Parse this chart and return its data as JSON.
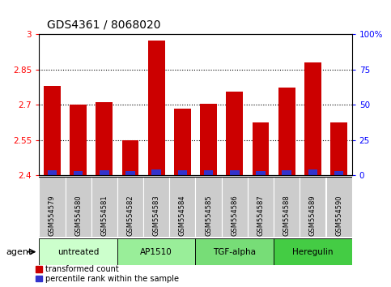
{
  "title": "GDS4361 / 8068020",
  "samples": [
    "GSM554579",
    "GSM554580",
    "GSM554581",
    "GSM554582",
    "GSM554583",
    "GSM554584",
    "GSM554585",
    "GSM554586",
    "GSM554587",
    "GSM554588",
    "GSM554589",
    "GSM554590"
  ],
  "red_values": [
    2.78,
    2.7,
    2.71,
    2.55,
    2.975,
    2.685,
    2.705,
    2.755,
    2.625,
    2.775,
    2.88,
    2.625
  ],
  "blue_heights": [
    0.022,
    0.018,
    0.02,
    0.016,
    0.025,
    0.02,
    0.022,
    0.02,
    0.016,
    0.02,
    0.024,
    0.018
  ],
  "ymin": 2.4,
  "ymax": 3.0,
  "yticks": [
    2.4,
    2.55,
    2.7,
    2.85,
    3.0
  ],
  "ytick_labels": [
    "2.4",
    "2.55",
    "2.7",
    "2.85",
    "3"
  ],
  "right_yticks": [
    0,
    25,
    50,
    75,
    100
  ],
  "right_ytick_labels": [
    "0",
    "25",
    "50",
    "75",
    "100%"
  ],
  "bar_bottom": 2.4,
  "bar_width": 0.65,
  "red_color": "#cc0000",
  "blue_color": "#3333cc",
  "groups": [
    {
      "label": "untreated",
      "start": 0,
      "end": 3,
      "color": "#ccffcc"
    },
    {
      "label": "AP1510",
      "start": 3,
      "end": 6,
      "color": "#99ee99"
    },
    {
      "label": "TGF-alpha",
      "start": 6,
      "end": 9,
      "color": "#77dd77"
    },
    {
      "label": "Heregulin",
      "start": 9,
      "end": 12,
      "color": "#44cc44"
    }
  ],
  "agent_label": "agent",
  "grid_color": "#000000",
  "bg_plot": "#ffffff",
  "sample_bg": "#cccccc",
  "legend_red": "transformed count",
  "legend_blue": "percentile rank within the sample",
  "title_fontsize": 10,
  "tick_fontsize": 7.5,
  "sample_fontsize": 6.0,
  "group_fontsize": 7.5,
  "legend_fontsize": 7.0
}
